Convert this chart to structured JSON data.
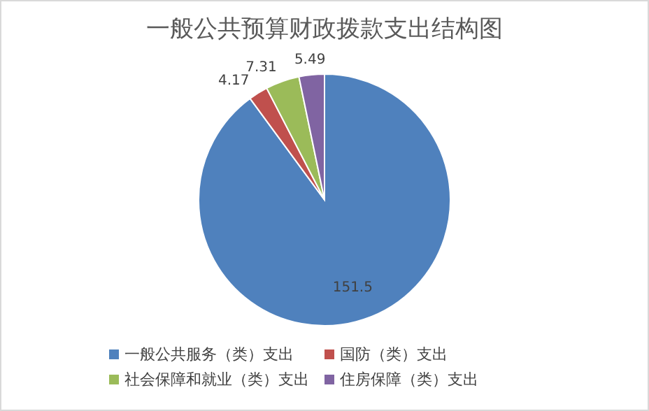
{
  "chart_data": {
    "type": "pie",
    "title": "一般公共预算财政拨款支出结构图",
    "categories": [
      "一般公共服务（类）支出",
      "国防（类）支出",
      "社会保障和就业（类）支出",
      "住房保障（类）支出"
    ],
    "values": [
      151.5,
      4.17,
      7.31,
      5.49
    ],
    "colors": [
      "#4f81bd",
      "#c0504d",
      "#9bbb59",
      "#8064a2"
    ],
    "data_labels": true,
    "legend": "bottom"
  }
}
